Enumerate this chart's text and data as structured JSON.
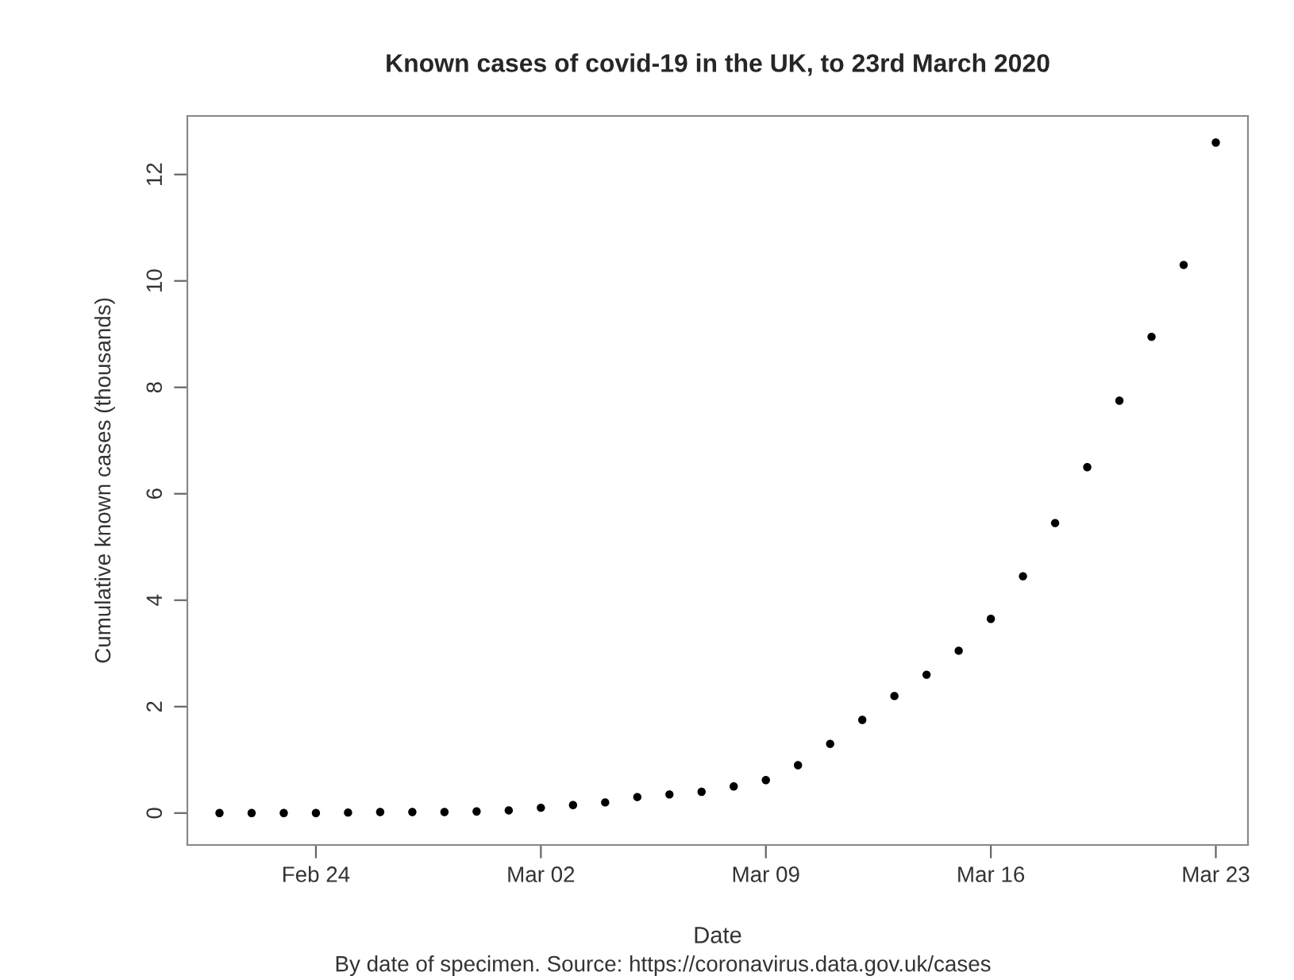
{
  "chart_data": {
    "type": "scatter",
    "title": "Known cases of covid-19 in the UK, to 23rd March 2020",
    "xlabel": "Date",
    "ylabel": "Cumulative known cases (thousands)",
    "annotations": [
      "By date of specimen. Source: https://coronavirus.data.gov.uk/cases"
    ],
    "x": [
      "2020-02-21",
      "2020-02-22",
      "2020-02-23",
      "2020-02-24",
      "2020-02-25",
      "2020-02-26",
      "2020-02-27",
      "2020-02-28",
      "2020-02-29",
      "2020-03-01",
      "2020-03-02",
      "2020-03-03",
      "2020-03-04",
      "2020-03-05",
      "2020-03-06",
      "2020-03-07",
      "2020-03-08",
      "2020-03-09",
      "2020-03-10",
      "2020-03-11",
      "2020-03-12",
      "2020-03-13",
      "2020-03-14",
      "2020-03-15",
      "2020-03-16",
      "2020-03-17",
      "2020-03-18",
      "2020-03-19",
      "2020-03-20",
      "2020-03-21",
      "2020-03-22",
      "2020-03-23"
    ],
    "series": [
      {
        "color": "#000000",
        "values": [
          0,
          0,
          0,
          0,
          0.01,
          0.02,
          0.02,
          0.02,
          0.03,
          0.05,
          0.1,
          0.15,
          0.2,
          0.3,
          0.35,
          0.4,
          0.5,
          0.62,
          0.9,
          1.3,
          1.75,
          2.2,
          2.6,
          3.05,
          3.65,
          4.45,
          5.45,
          6.5,
          7.75,
          8.95,
          10.3,
          12.6
        ]
      }
    ],
    "xlim": [
      "2020-02-20",
      "2020-03-24"
    ],
    "xticks": [
      {
        "value": "2020-02-24",
        "label": "Feb 24"
      },
      {
        "value": "2020-03-02",
        "label": "Mar 02"
      },
      {
        "value": "2020-03-09",
        "label": "Mar 09"
      },
      {
        "value": "2020-03-16",
        "label": "Mar 16"
      },
      {
        "value": "2020-03-23",
        "label": "Mar 23"
      }
    ],
    "ylim": [
      -0.6,
      13.1
    ],
    "yticks": [
      0,
      2,
      4,
      6,
      8,
      10,
      12
    ],
    "marker": "circle",
    "grid": false,
    "legend": false
  }
}
